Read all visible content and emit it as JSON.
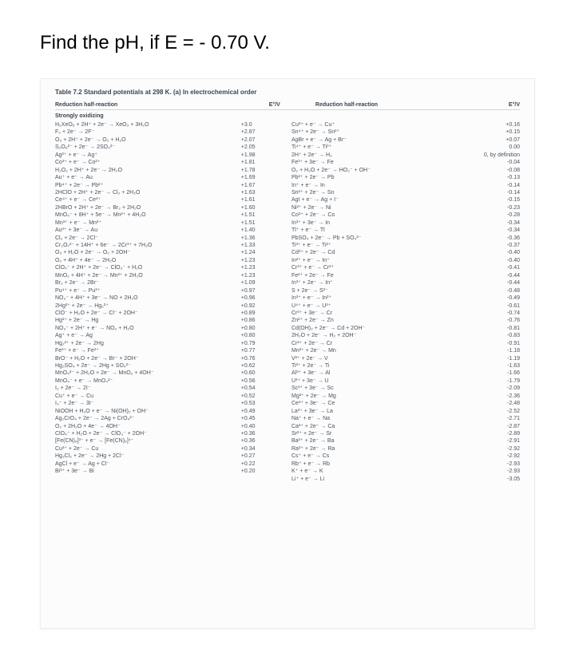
{
  "question": "Find the pH, if E = - 0.70 V.",
  "table_title": "Table 7.2 Standard potentials at 298 K. (a) In electrochemical order",
  "headers": {
    "left": "Reduction half-reaction",
    "mid": "E°/V",
    "right1": "Reduction half-reaction",
    "right2": "E°/V"
  },
  "section_label": "Strongly oxidizing",
  "left_rows": [
    {
      "rx": "H₂XeO₆ + 2H⁺ + 2e⁻ → XeO₃ + 3H₂O",
      "v": "+3.0"
    },
    {
      "rx": "F₂ + 2e⁻ → 2F⁻",
      "v": "+2.87"
    },
    {
      "rx": "O₃ + 2H⁺ + 2e⁻ → O₂ + H₂O",
      "v": "+2.07"
    },
    {
      "rx": "S₂O₈²⁻ + 2e⁻ → 2SO₄²⁻",
      "v": "+2.05"
    },
    {
      "rx": "Ag²⁺ + e⁻ → Ag⁺",
      "v": "+1.98"
    },
    {
      "rx": "Co³⁺ + e⁻ → Co²⁺",
      "v": "+1.81"
    },
    {
      "rx": "H₂O₂ + 2H⁺ + 2e⁻ → 2H₂O",
      "v": "+1.78"
    },
    {
      "rx": "Au⁺ + e⁻ → Au",
      "v": "+1.69"
    },
    {
      "rx": "Pb⁴⁺ + 2e⁻ → Pb²⁺",
      "v": "+1.67"
    },
    {
      "rx": "2HClO + 2H⁺ + 2e⁻ → Cl₂ + 2H₂O",
      "v": "+1.63"
    },
    {
      "rx": "Ce⁴⁺ + e⁻ → Ce³⁺",
      "v": "+1.61"
    },
    {
      "rx": "2HBrO + 2H⁺ + 2e⁻ → Br₂ + 2H₂O",
      "v": "+1.60"
    },
    {
      "rx": "MnO₄⁻ + 8H⁺ + 5e⁻ → Mn²⁺ + 4H₂O",
      "v": "+1.51"
    },
    {
      "rx": "Mn³⁺ + e⁻ → Mn²⁺",
      "v": "+1.51"
    },
    {
      "rx": "Au³⁺ + 3e⁻ → Au",
      "v": "+1.40"
    },
    {
      "rx": "Cl₂ + 2e⁻ → 2Cl⁻",
      "v": "+1.36"
    },
    {
      "rx": "Cr₂O₇²⁻ + 14H⁺ + 6e⁻ → 2Cr³⁺ + 7H₂O",
      "v": "+1.33"
    },
    {
      "rx": "O₃ + H₂O + 2e⁻ → O₂ + 2OH⁻",
      "v": "+1.24"
    },
    {
      "rx": "O₂ + 4H⁺ + 4e⁻ → 2H₂O",
      "v": "+1.23"
    },
    {
      "rx": "ClO₄⁻ + 2H⁺ + 2e⁻ → ClO₃⁻ + H₂O",
      "v": "+1.23"
    },
    {
      "rx": "MnO₂ + 4H⁺ + 2e⁻ → Mn²⁺ + 2H₂O",
      "v": "+1.23"
    },
    {
      "rx": "Br₂ + 2e⁻ → 2Br⁻",
      "v": "+1.09"
    },
    {
      "rx": "Pu⁴⁺ + e⁻ → Pu³⁺",
      "v": "+0.97"
    },
    {
      "rx": "NO₃⁻ + 4H⁺ + 3e⁻ → NO + 2H₂O",
      "v": "+0.96"
    },
    {
      "rx": "2Hg²⁺ + 2e⁻ → Hg₂²⁺",
      "v": "+0.92"
    },
    {
      "rx": "ClO⁻ + H₂O + 2e⁻ → Cl⁻ + 2OH⁻",
      "v": "+0.89"
    },
    {
      "rx": "Hg²⁺ + 2e⁻ → Hg",
      "v": "+0.86"
    },
    {
      "rx": "NO₃⁻ + 2H⁺ + e⁻ → NO₂ + H₂O",
      "v": "+0.80"
    },
    {
      "rx": "Ag⁺ + e⁻ → Ag",
      "v": "+0.80"
    },
    {
      "rx": "Hg₂²⁺ + 2e⁻ → 2Hg",
      "v": "+0.79"
    },
    {
      "rx": "Fe³⁺ + e⁻ → Fe²⁺",
      "v": "+0.77"
    },
    {
      "rx": "BrO⁻ + H₂O + 2e⁻ → Br⁻ + 2OH⁻",
      "v": "+0.76"
    },
    {
      "rx": "Hg₂SO₄ + 2e⁻ → 2Hg + SO₄²⁻",
      "v": "+0.62"
    },
    {
      "rx": "MnO₄²⁻ + 2H₂O + 2e⁻ → MnO₂ + 4OH⁻",
      "v": "+0.60"
    },
    {
      "rx": "MnO₄⁻ + e⁻ → MnO₄²⁻",
      "v": "+0.56"
    },
    {
      "rx": "I₂ + 2e⁻ → 2I⁻",
      "v": "+0.54"
    },
    {
      "rx": "Cu⁺ + e⁻ → Cu",
      "v": "+0.52"
    },
    {
      "rx": "I₃⁻ + 2e⁻ → 3I⁻",
      "v": "+0.53"
    },
    {
      "rx": "NiOOH + H₂O + e⁻ → Ni(OH)₂ + OH⁻",
      "v": "+0.49"
    },
    {
      "rx": "Ag₂CrO₄ + 2e⁻ → 2Ag + CrO₄²⁻",
      "v": "+0.45"
    },
    {
      "rx": "O₂ + 2H₂O + 4e⁻ → 4OH⁻",
      "v": "+0.40"
    },
    {
      "rx": "ClO₄⁻ + H₂O + 2e⁻ → ClO₃⁻ + 2OH⁻",
      "v": "+0.36"
    },
    {
      "rx": "[Fe(CN)₆]³⁻ + e⁻ → [Fe(CN)₆]⁴⁻",
      "v": "+0.36"
    },
    {
      "rx": "Cu²⁺ + 2e⁻ → Cu",
      "v": "+0.34"
    },
    {
      "rx": "Hg₂Cl₂ + 2e⁻ → 2Hg + 2Cl⁻",
      "v": "+0.27"
    },
    {
      "rx": "AgCl + e⁻ → Ag + Cl⁻",
      "v": "+0.22"
    },
    {
      "rx": "Bi³⁺ + 3e⁻ → Bi",
      "v": "+0.20"
    }
  ],
  "right_rows": [
    {
      "rx": "Cu²⁺ + e⁻ → Cu⁺",
      "v": "+0.16"
    },
    {
      "rx": "Sn⁴⁺ + 2e⁻ → Sn²⁺",
      "v": "+0.15"
    },
    {
      "rx": "AgBr + e⁻ → Ag + Br⁻",
      "v": "+0.07"
    },
    {
      "rx": "Ti⁴⁺ + e⁻ → Ti³⁺",
      "v": "0.00"
    },
    {
      "rx": "2H⁺ + 2e⁻ → H₂",
      "v": "0, by definition"
    },
    {
      "rx": "Fe³⁺ + 3e⁻ → Fe",
      "v": "-0.04"
    },
    {
      "rx": "O₂ + H₂O + 2e⁻ → HO₂⁻ + OH⁻",
      "v": "-0.08"
    },
    {
      "rx": "Pb²⁺ + 2e⁻ → Pb",
      "v": "-0.13"
    },
    {
      "rx": "In⁺ + e⁻ → In",
      "v": "-0.14"
    },
    {
      "rx": "Sn²⁺ + 2e⁻ → Sn",
      "v": "-0.14"
    },
    {
      "rx": "AgI + e⁻ → Ag + I⁻",
      "v": "-0.15"
    },
    {
      "rx": "Ni²⁺ + 2e⁻ → Ni",
      "v": "-0.23"
    },
    {
      "rx": "Co²⁺ + 2e⁻ → Co",
      "v": "-0.28"
    },
    {
      "rx": "In³⁺ + 3e⁻ → In",
      "v": "-0.34"
    },
    {
      "rx": "Tl⁺ + e⁻ → Tl",
      "v": "-0.34"
    },
    {
      "rx": "PbSO₄ + 2e⁻ → Pb + SO₄²⁻",
      "v": "-0.36"
    },
    {
      "rx": "Ti³⁺ + e⁻ → Ti²⁺",
      "v": "-0.37"
    },
    {
      "rx": "Cd²⁺ + 2e⁻ → Cd",
      "v": "-0.40"
    },
    {
      "rx": "In²⁺ + e⁻ → In⁺",
      "v": "-0.40"
    },
    {
      "rx": "Cr³⁺ + e⁻ → Cr²⁺",
      "v": "-0.41"
    },
    {
      "rx": "Fe²⁺ + 2e⁻ → Fe",
      "v": "-0.44"
    },
    {
      "rx": "In³⁺ + 2e⁻ → In⁺",
      "v": "-0.44"
    },
    {
      "rx": "S + 2e⁻ → S²⁻",
      "v": "-0.48"
    },
    {
      "rx": "In³⁺ + e⁻ → In²⁺",
      "v": "-0.49"
    },
    {
      "rx": "U⁴⁺ + e⁻ → U³⁺",
      "v": "-0.61"
    },
    {
      "rx": "Cr³⁺ + 3e⁻ → Cr",
      "v": "-0.74"
    },
    {
      "rx": "Zn²⁺ + 2e⁻ → Zn",
      "v": "-0.76"
    },
    {
      "rx": "Cd(OH)₂ + 2e⁻ → Cd + 2OH⁻",
      "v": "-0.81"
    },
    {
      "rx": "2H₂O + 2e⁻ → H₂ + 2OH⁻",
      "v": "-0.83"
    },
    {
      "rx": "Cr²⁺ + 2e⁻ → Cr",
      "v": "-0.91"
    },
    {
      "rx": "Mn²⁺ + 2e⁻ → Mn",
      "v": "-1.18"
    },
    {
      "rx": "V²⁺ + 2e⁻ → V",
      "v": "-1.19"
    },
    {
      "rx": "Ti²⁺ + 2e⁻ → Ti",
      "v": "-1.63"
    },
    {
      "rx": "Al³⁺ + 3e⁻ → Al",
      "v": "-1.66"
    },
    {
      "rx": "U³⁺ + 3e⁻ → U",
      "v": "-1.79"
    },
    {
      "rx": "Sc³⁺ + 3e⁻ → Sc",
      "v": "-2.09"
    },
    {
      "rx": "Mg²⁺ + 2e⁻ → Mg",
      "v": "-2.36"
    },
    {
      "rx": "Ce³⁺ + 3e⁻ → Ce",
      "v": "-2.48"
    },
    {
      "rx": "La³⁺ + 3e⁻ → La",
      "v": "-2.52"
    },
    {
      "rx": "Na⁺ + e⁻ → Na",
      "v": "-2.71"
    },
    {
      "rx": "Ca²⁺ + 2e⁻ → Ca",
      "v": "-2.87"
    },
    {
      "rx": "Sr²⁺ + 2e⁻ → Sr",
      "v": "-2.89"
    },
    {
      "rx": "Ba²⁺ + 2e⁻ → Ba",
      "v": "-2.91"
    },
    {
      "rx": "Ra²⁺ + 2e⁻ → Ra",
      "v": "-2.92"
    },
    {
      "rx": "Cs⁺ + e⁻ → Cs",
      "v": "-2.92"
    },
    {
      "rx": "Rb⁺ + e⁻ → Rb",
      "v": "-2.93"
    },
    {
      "rx": "K⁺ + e⁻ → K",
      "v": "-2.93"
    },
    {
      "rx": "Li⁺ + e⁻ → Li",
      "v": "-3.05"
    }
  ]
}
